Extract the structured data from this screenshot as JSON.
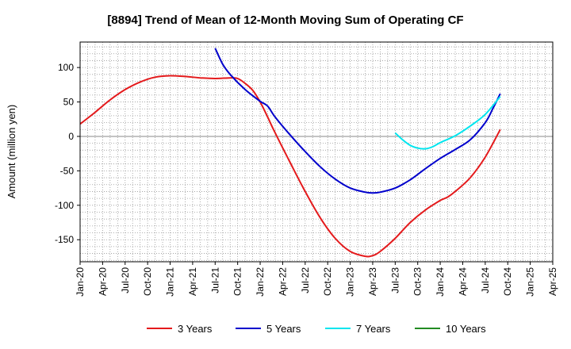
{
  "chart_data": {
    "type": "line",
    "title": "[8894]  Trend of Mean of 12-Month Moving Sum of Operating CF",
    "xlabel": "",
    "ylabel": "Amount (million yen)",
    "ylim": [
      -182,
      137
    ],
    "yticks": [
      100,
      50,
      0,
      -50,
      -100,
      -150
    ],
    "x_tick_labels": [
      "Jan-20",
      "Apr-20",
      "Jul-20",
      "Oct-20",
      "Jan-21",
      "Apr-21",
      "Jul-21",
      "Oct-21",
      "Jan-22",
      "Apr-22",
      "Jul-22",
      "Oct-22",
      "Jan-23",
      "Apr-23",
      "Jul-23",
      "Oct-23",
      "Jan-24",
      "Apr-24",
      "Jul-24",
      "Oct-24",
      "Jan-25",
      "Apr-25"
    ],
    "x_range_months": [
      0,
      63
    ],
    "grid": true,
    "legend_position": "bottom",
    "series": [
      {
        "name": "3 Years",
        "color": "#e41a1c",
        "points": [
          [
            0,
            18
          ],
          [
            2,
            35
          ],
          [
            4,
            53
          ],
          [
            6,
            68
          ],
          [
            8,
            79
          ],
          [
            10,
            86
          ],
          [
            12,
            88
          ],
          [
            14,
            87
          ],
          [
            16,
            85
          ],
          [
            18,
            84
          ],
          [
            20,
            85
          ],
          [
            21,
            84
          ],
          [
            22,
            77
          ],
          [
            23,
            67
          ],
          [
            24,
            50
          ],
          [
            25,
            28
          ],
          [
            26,
            5
          ],
          [
            28,
            -38
          ],
          [
            30,
            -80
          ],
          [
            32,
            -118
          ],
          [
            34,
            -148
          ],
          [
            36,
            -167
          ],
          [
            38,
            -174
          ],
          [
            39,
            -173
          ],
          [
            40,
            -167
          ],
          [
            42,
            -148
          ],
          [
            44,
            -125
          ],
          [
            46,
            -107
          ],
          [
            48,
            -93
          ],
          [
            49,
            -88
          ],
          [
            50,
            -80
          ],
          [
            52,
            -60
          ],
          [
            54,
            -30
          ],
          [
            56,
            10
          ]
        ]
      },
      {
        "name": "5 Years",
        "color": "#0000cc",
        "points": [
          [
            18,
            128
          ],
          [
            19,
            105
          ],
          [
            20,
            90
          ],
          [
            22,
            68
          ],
          [
            24,
            51
          ],
          [
            25,
            44
          ],
          [
            26,
            28
          ],
          [
            28,
            2
          ],
          [
            30,
            -22
          ],
          [
            32,
            -44
          ],
          [
            34,
            -62
          ],
          [
            36,
            -75
          ],
          [
            38,
            -81
          ],
          [
            39,
            -82
          ],
          [
            40,
            -81
          ],
          [
            42,
            -75
          ],
          [
            44,
            -63
          ],
          [
            46,
            -47
          ],
          [
            48,
            -32
          ],
          [
            50,
            -19
          ],
          [
            52,
            -5
          ],
          [
            54,
            20
          ],
          [
            55,
            40
          ],
          [
            56,
            62
          ]
        ]
      },
      {
        "name": "7 Years",
        "color": "#00e5ee",
        "points": [
          [
            42,
            5
          ],
          [
            43,
            -5
          ],
          [
            44,
            -13
          ],
          [
            45,
            -17
          ],
          [
            46,
            -18
          ],
          [
            47,
            -15
          ],
          [
            48,
            -9
          ],
          [
            50,
            1
          ],
          [
            52,
            15
          ],
          [
            54,
            32
          ],
          [
            56,
            58
          ]
        ]
      },
      {
        "name": "10 Years",
        "color": "#228b22",
        "points": []
      }
    ]
  }
}
